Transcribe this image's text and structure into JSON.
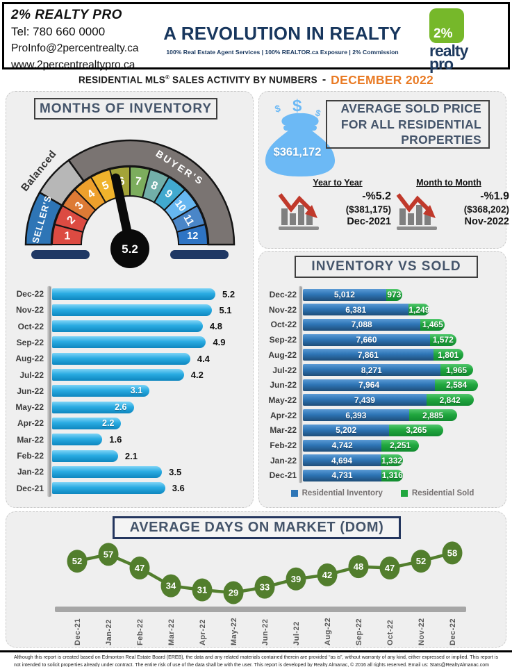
{
  "header": {
    "company": "2% REALTY PRO",
    "phone": "Tel: 780 660 0000",
    "email": "ProInfo@2percentrealty.ca",
    "website": "www.2percentrealtypro.ca",
    "slogan": "A REVOLUTION IN REALTY",
    "tagline": "100% Real Estate Agent Services | 100% REALTOR.ca Exposure | 2% Commission",
    "logo": {
      "percent": "2%",
      "word1": "realty",
      "word2": "pro"
    }
  },
  "banner": {
    "prefix": "RESIDENTIAL MLS",
    "reg": "®",
    "suffix": " SALES ACTIVITY BY NUMBERS",
    "separator": "-",
    "period": "DECEMBER 2022"
  },
  "sections": {
    "months_of_inventory": {
      "title": "MONTHS OF INVENTORY"
    },
    "avg_price": {
      "title_line1": "AVERAGE  SOLD PRICE",
      "title_line2": "FOR ALL RESIDENTIAL",
      "title_line3": "PROPERTIES",
      "price": "$361,172",
      "yoy": {
        "label": "Year to Year",
        "change": "-%5.2",
        "previous": "($381,175)",
        "period": "Dec-2021"
      },
      "mom": {
        "label": "Month to Month",
        "change": "-%1.9",
        "previous": "($368,202)",
        "period": "Nov-2022"
      }
    },
    "inventory_vs_sold": {
      "title": "INVENTORY VS SOLD",
      "legend": [
        {
          "label": "Residential Inventory",
          "color": "#2E75B6"
        },
        {
          "label": "Residential Sold",
          "color": "#21A73F"
        }
      ]
    },
    "dom": {
      "title": "AVERAGE DAYS ON MARKET  (DOM)"
    }
  },
  "chart_data": [
    {
      "id": "gauge",
      "type": "gauge",
      "title": "MONTHS OF INVENTORY",
      "value": 5.2,
      "value_label": "5.2",
      "min": 0,
      "max": 12,
      "segments": [
        {
          "label": "1",
          "color": "#DC4B42"
        },
        {
          "label": "2",
          "color": "#DC4B42"
        },
        {
          "label": "3",
          "color": "#DD7A35"
        },
        {
          "label": "4",
          "color": "#EEA02C"
        },
        {
          "label": "5",
          "color": "#F0B32C"
        },
        {
          "label": "6",
          "color": "#A3A338"
        },
        {
          "label": "7",
          "color": "#7CAD5D"
        },
        {
          "label": "8",
          "color": "#72AFA9"
        },
        {
          "label": "9",
          "color": "#41A9CF"
        },
        {
          "label": "10",
          "color": "#66B6F0"
        },
        {
          "label": "11",
          "color": "#4A86C8"
        },
        {
          "label": "12",
          "color": "#2E74C4"
        }
      ],
      "zones": [
        {
          "label": "SELLER'S",
          "color": "#2E75B6",
          "from": 180,
          "to": 150
        },
        {
          "label": "Balanced",
          "color": "#B7B7B7",
          "from": 150,
          "to": 126
        },
        {
          "label": "BUYER'S",
          "color": "#7A7472",
          "from": 126,
          "to": 0
        }
      ]
    },
    {
      "id": "months_of_inventory",
      "type": "bar",
      "orientation": "horizontal",
      "bar_color": "#29ABE2",
      "categories": [
        "Dec-22",
        "Nov-22",
        "Oct-22",
        "Sep-22",
        "Aug-22",
        "Jul-22",
        "Jun-22",
        "May-22",
        "Apr-22",
        "Mar-22",
        "Feb-22",
        "Jan-22",
        "Dec-21"
      ],
      "values": [
        5.2,
        5.1,
        4.8,
        4.9,
        4.4,
        4.2,
        3.1,
        2.6,
        2.2,
        1.6,
        2.1,
        3.5,
        3.6
      ],
      "label_inside": [
        false,
        false,
        false,
        false,
        false,
        false,
        true,
        true,
        true,
        false,
        false,
        false,
        false
      ],
      "xlim": [
        0,
        5.5
      ]
    },
    {
      "id": "inventory_vs_sold",
      "type": "bar",
      "stacked": true,
      "orientation": "horizontal",
      "categories": [
        "Dec-22",
        "Nov-22",
        "Oct-22",
        "Sep-22",
        "Aug-22",
        "Jul-22",
        "Jun-22",
        "May-22",
        "Apr-22",
        "Mar-22",
        "Feb-22",
        "Jan-22",
        "Dec-21"
      ],
      "series": [
        {
          "name": "Residential Inventory",
          "color": "#2E75B6",
          "values": [
            5012,
            6381,
            7088,
            7660,
            7861,
            8271,
            7964,
            7439,
            6393,
            5202,
            4742,
            4694,
            4731
          ]
        },
        {
          "name": "Residential Sold",
          "color": "#21A73F",
          "values": [
            973,
            1249,
            1465,
            1572,
            1801,
            1965,
            2584,
            2842,
            2885,
            3265,
            2251,
            1332,
            1316
          ]
        }
      ]
    },
    {
      "id": "average_dom",
      "type": "line",
      "point_color": "#527E2D",
      "categories": [
        "Dec-21",
        "Jan-22",
        "Feb-22",
        "Mar-22",
        "Apr-22",
        "May-22",
        "Jun-22",
        "Jul-22",
        "Aug-22",
        "Sep-22",
        "Oct-22",
        "Nov-22",
        "Dec-22"
      ],
      "values": [
        52,
        57,
        47,
        34,
        31,
        29,
        33,
        39,
        42,
        48,
        47,
        52,
        58
      ],
      "ylim": [
        25,
        62
      ]
    }
  ],
  "footer": {
    "disclaimer": "Although this report is created based on Edmonton Real Estate Board (EREB), the data and any related materials contained therein are provided “as is”, without warranty of any kind, either expressed or implied.  This report is not intended to solicit properties already under contract.  The entire risk of use of the data shall be with the user.  This report is developed by Realty Almanac, © 2016 all rights reserved. Email us: Stats@RealtyAlmanac.com"
  }
}
